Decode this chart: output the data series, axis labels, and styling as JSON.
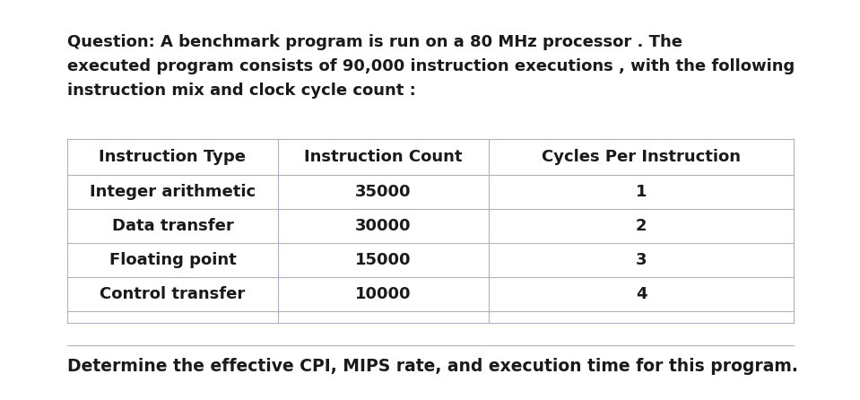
{
  "question_text": [
    "Question: A benchmark program is run on a 80 MHz processor . The",
    "executed program consists of 90,000 instruction executions , with the following",
    "instruction mix and clock cycle count :"
  ],
  "table_headers": [
    "Instruction Type",
    "Instruction Count",
    "Cycles Per Instruction"
  ],
  "table_rows": [
    [
      "Integer arithmetic",
      "35000",
      "1"
    ],
    [
      "Data transfer",
      "30000",
      "2"
    ],
    [
      "Floating point",
      "15000",
      "3"
    ],
    [
      "Control transfer",
      "10000",
      "4"
    ]
  ],
  "footer_text": "Determine the effective CPI, MIPS rate, and execution time for this program.",
  "bg_color": "#ffffff",
  "text_color": "#1a1a1a",
  "table_line_color": "#b0b0cc",
  "font_size_question": 13.0,
  "font_size_table": 13.0,
  "font_size_footer": 13.5
}
